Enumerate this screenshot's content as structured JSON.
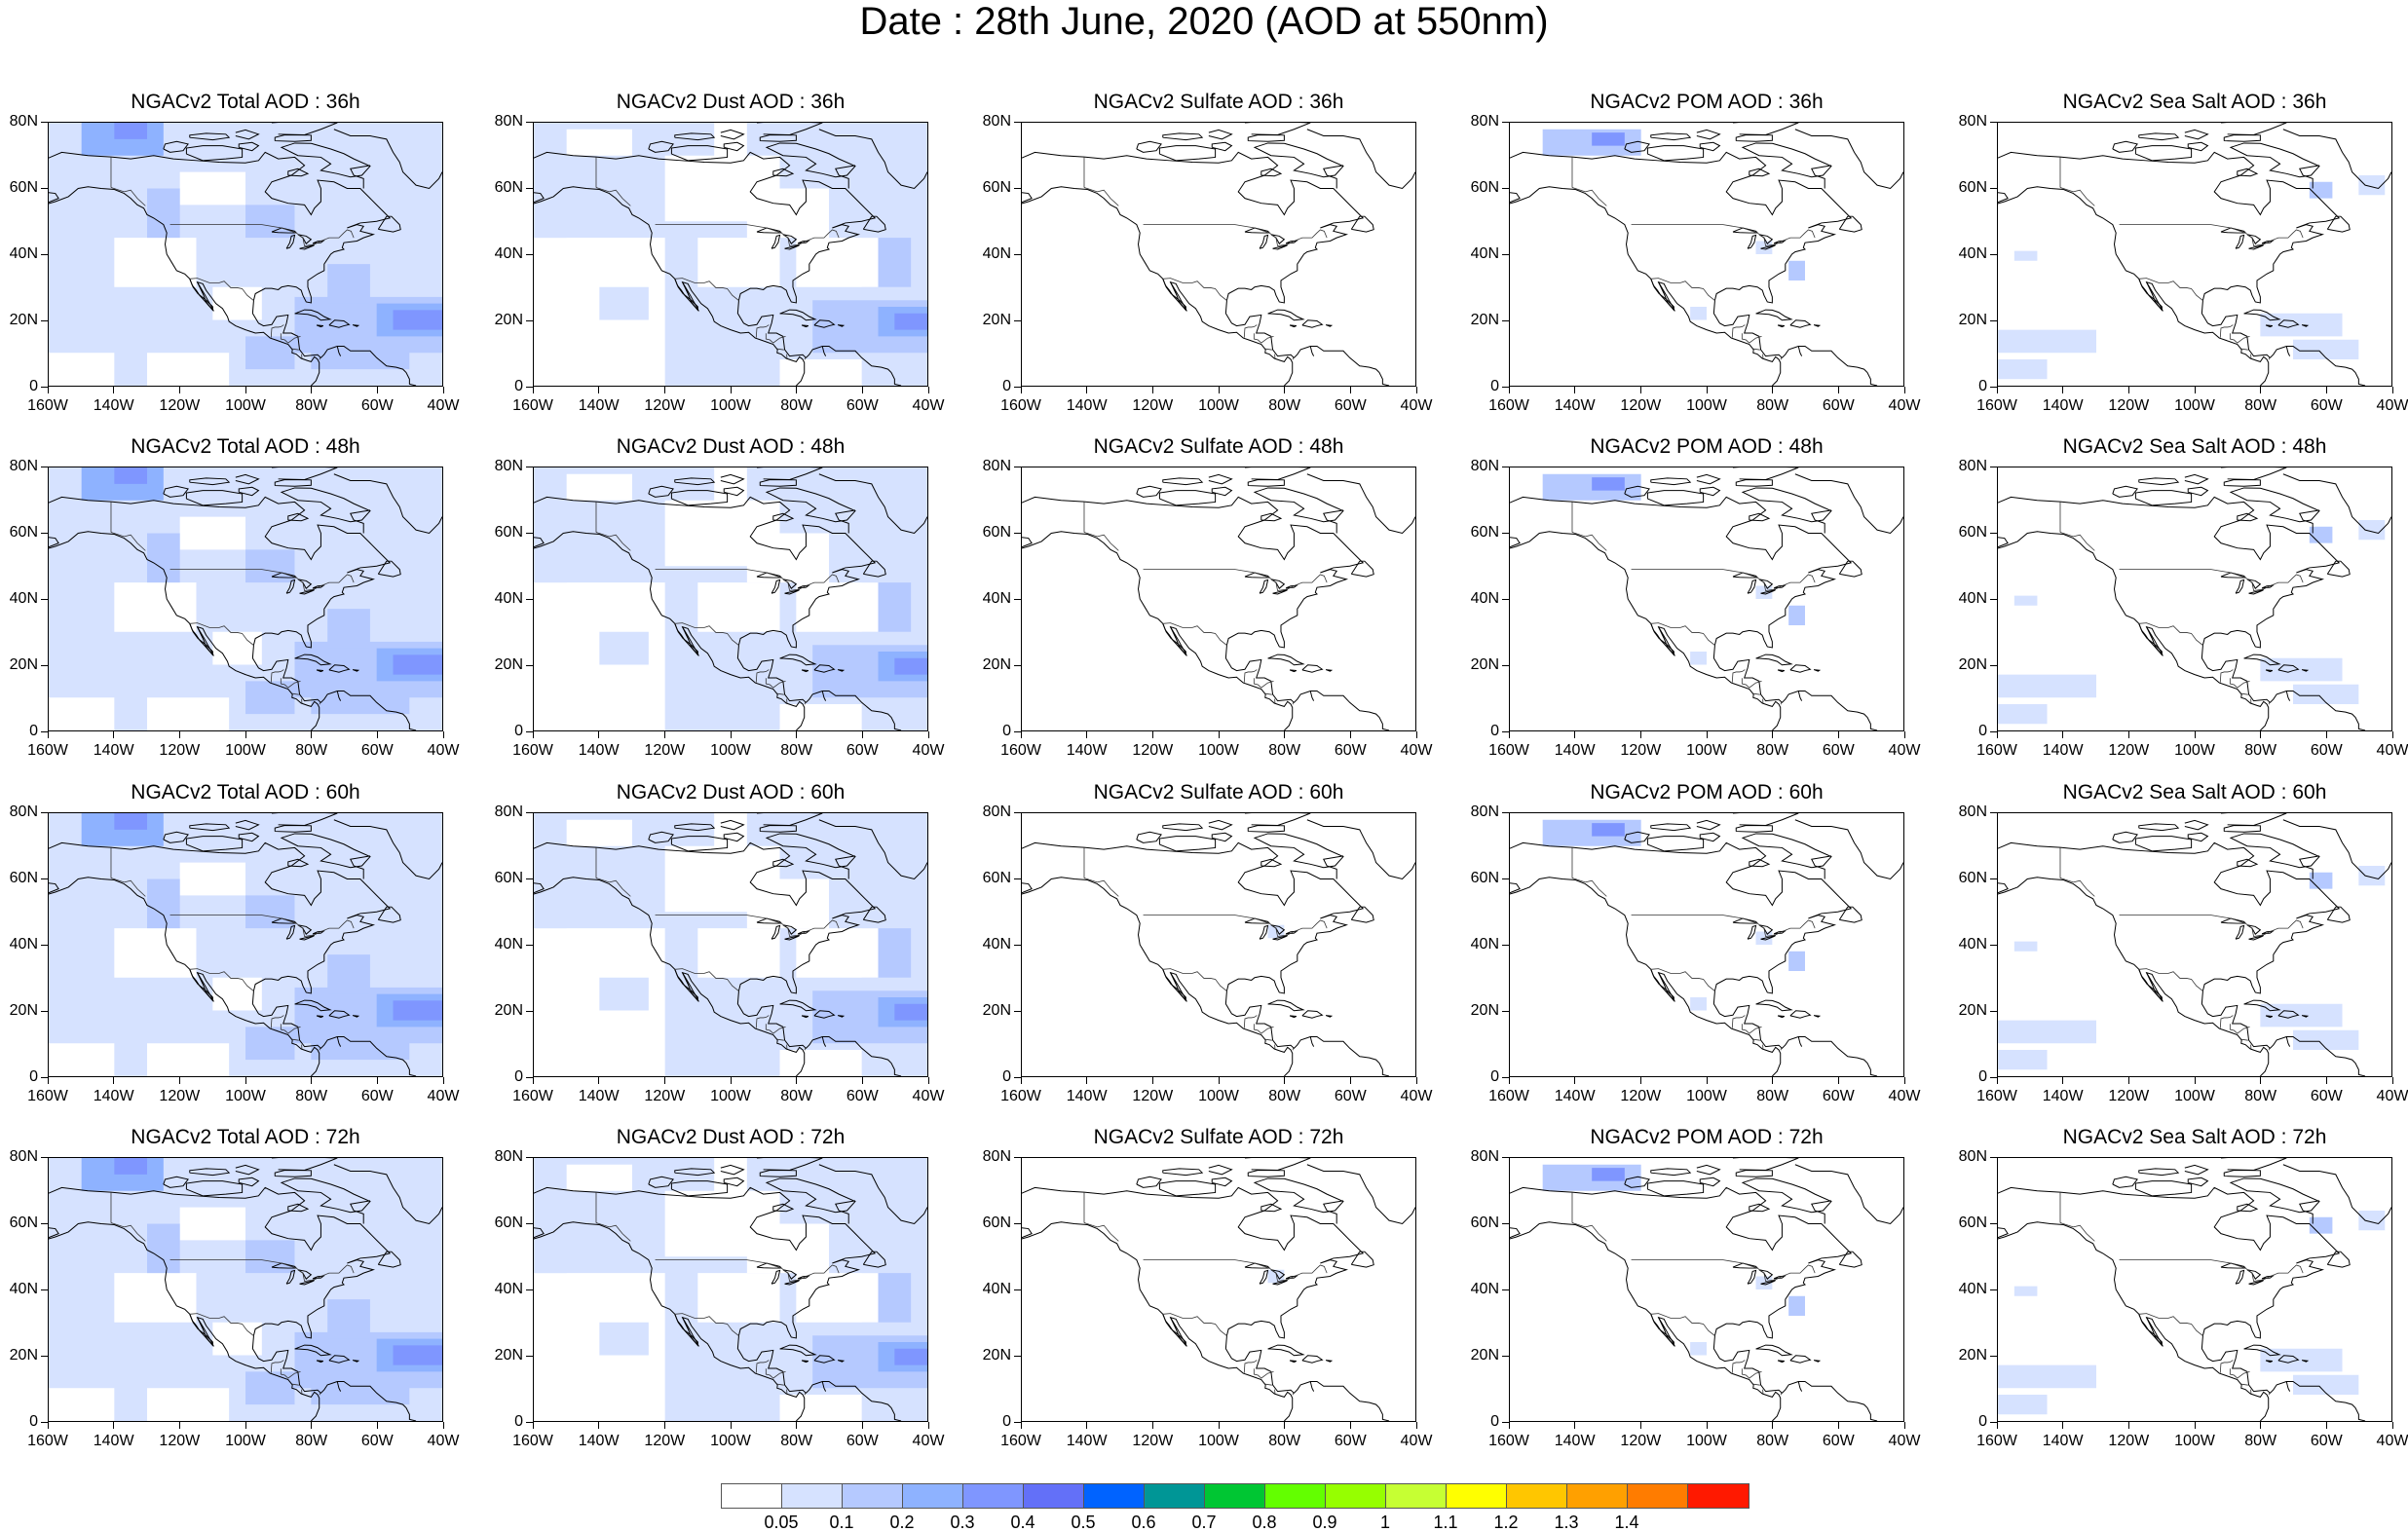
{
  "title": "Date : 28th June, 2020 (AOD at 550nm)",
  "panels": [
    [
      "NGACv2 Total AOD : 36h",
      "NGACv2 Dust AOD : 36h",
      "NGACv2 Sulfate AOD : 36h",
      "NGACv2 POM AOD : 36h",
      "NGACv2 Sea Salt AOD : 36h"
    ],
    [
      "NGACv2 Total AOD : 48h",
      "NGACv2 Dust AOD : 48h",
      "NGACv2 Sulfate AOD : 48h",
      "NGACv2 POM AOD : 48h",
      "NGACv2 Sea Salt AOD : 48h"
    ],
    [
      "NGACv2 Total AOD : 60h",
      "NGACv2 Dust AOD : 60h",
      "NGACv2 Sulfate AOD : 60h",
      "NGACv2 POM AOD : 60h",
      "NGACv2 Sea Salt AOD : 60h"
    ],
    [
      "NGACv2 Total AOD : 72h",
      "NGACv2 Dust AOD : 72h",
      "NGACv2 Sulfate AOD : 72h",
      "NGACv2 POM AOD : 72h",
      "NGACv2 Sea Salt  AOD : 72h"
    ]
  ],
  "panel_kinds": [
    "total",
    "dust",
    "sulfate",
    "pom",
    "seasalt"
  ],
  "x_ticks": [
    "160W",
    "140W",
    "120W",
    "100W",
    "80W",
    "60W",
    "40W"
  ],
  "y_ticks": [
    "80N",
    "60N",
    "40N",
    "20N",
    "0"
  ],
  "colorbar": {
    "colors": [
      "#ffffff",
      "#d6e2ff",
      "#b5c9ff",
      "#8eb2ff",
      "#7f96ff",
      "#6370f8",
      "#0063ff",
      "#009696",
      "#00c633",
      "#63ff00",
      "#96ff00",
      "#c6ff33",
      "#ffff00",
      "#ffc600",
      "#ffa000",
      "#ff7c00",
      "#ff1900"
    ],
    "labels": [
      "0.05",
      "0.1",
      "0.2",
      "0.3",
      "0.4",
      "0.5",
      "0.6",
      "0.7",
      "0.8",
      "0.9",
      "1",
      "1.1",
      "1.2",
      "1.3",
      "1.4"
    ]
  }
}
